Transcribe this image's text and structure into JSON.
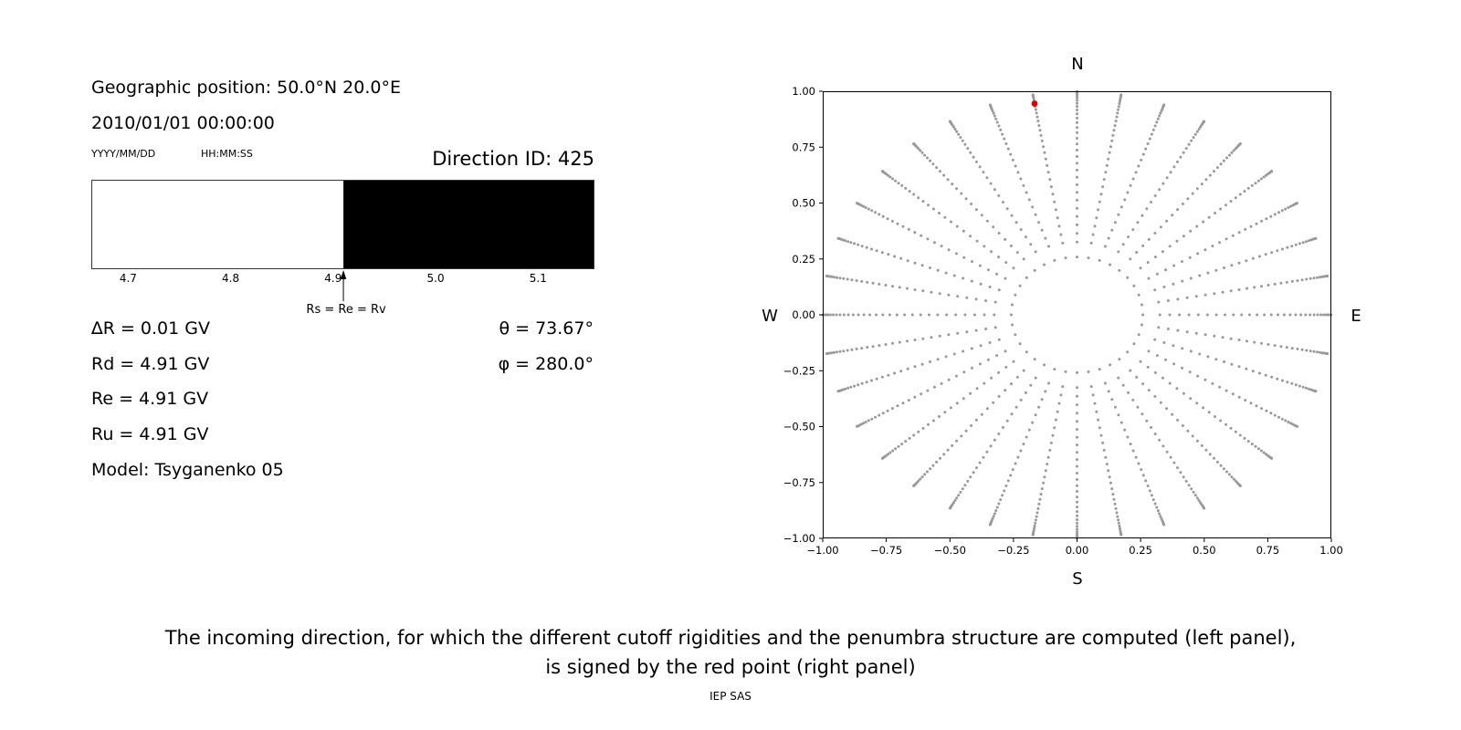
{
  "page": {
    "background": "#ffffff",
    "caption_line1": "The incoming direction, for which the different cutoff rigidities and the penumbra structure are computed (left panel),",
    "caption_line2": "is signed by the red point (right panel)",
    "credit": "IEP SAS"
  },
  "left_panel": {
    "geo_position": "Geographic position: 50.0°N 20.0°E",
    "datetime": "2010/01/01 00:00:00",
    "date_format_hint": "YYYY/MM/DD",
    "time_format_hint": "HH:MM:SS",
    "direction_id_label": "Direction ID: 425",
    "results": [
      "∆R = 0.01 GV",
      "Rd = 4.91 GV",
      "Re = 4.91 GV",
      "Ru = 4.91 GV",
      "Model: Tsyganenko 05"
    ],
    "angles": [
      "θ = 73.67°",
      "φ = 280.0°"
    ]
  },
  "chart_data": [
    {
      "type": "bar",
      "name": "penumbra-strip",
      "xlim": [
        4.664,
        5.155
      ],
      "xtick_values": [
        4.7,
        4.8,
        4.9,
        5.0,
        5.1
      ],
      "xtick_labels": [
        "4.7",
        "4.8",
        "4.9",
        "5.0",
        "5.1"
      ],
      "segments": [
        {
          "from": 4.664,
          "to": 4.91,
          "color": "#ffffff"
        },
        {
          "from": 4.91,
          "to": 5.155,
          "color": "#000000"
        }
      ],
      "border_color": "#333333",
      "annotation": {
        "x": 4.91,
        "label": "Rs = Re = Rv"
      }
    },
    {
      "type": "scatter",
      "name": "direction-map",
      "xlim": [
        -1.0,
        1.0
      ],
      "ylim": [
        -1.0,
        1.0
      ],
      "xticks": [
        -1.0,
        -0.75,
        -0.5,
        -0.25,
        0.0,
        0.25,
        0.5,
        0.75,
        1.0
      ],
      "yticks": [
        -1.0,
        -0.75,
        -0.5,
        -0.25,
        0.0,
        0.25,
        0.5,
        0.75,
        1.0
      ],
      "tick_decimals": 2,
      "compass": {
        "top": "N",
        "bottom": "S",
        "left": "W",
        "right": "E"
      },
      "grid_dots": {
        "azimuth_start_deg": 0,
        "azimuth_step_deg": 10,
        "azimuth_count": 36,
        "ring_zenith_deg": 15,
        "ray_zenith_start_deg": 19,
        "ray_zenith_end_deg": 90,
        "ray_zenith_step_deg": 2.37,
        "radius_equals": "sin(zenith)",
        "color": "#999999",
        "dot_radius_px": 1.5
      },
      "red_point": {
        "x": -0.167,
        "y": 0.945,
        "color": "#e00000",
        "radius_px": 3.4
      }
    }
  ]
}
